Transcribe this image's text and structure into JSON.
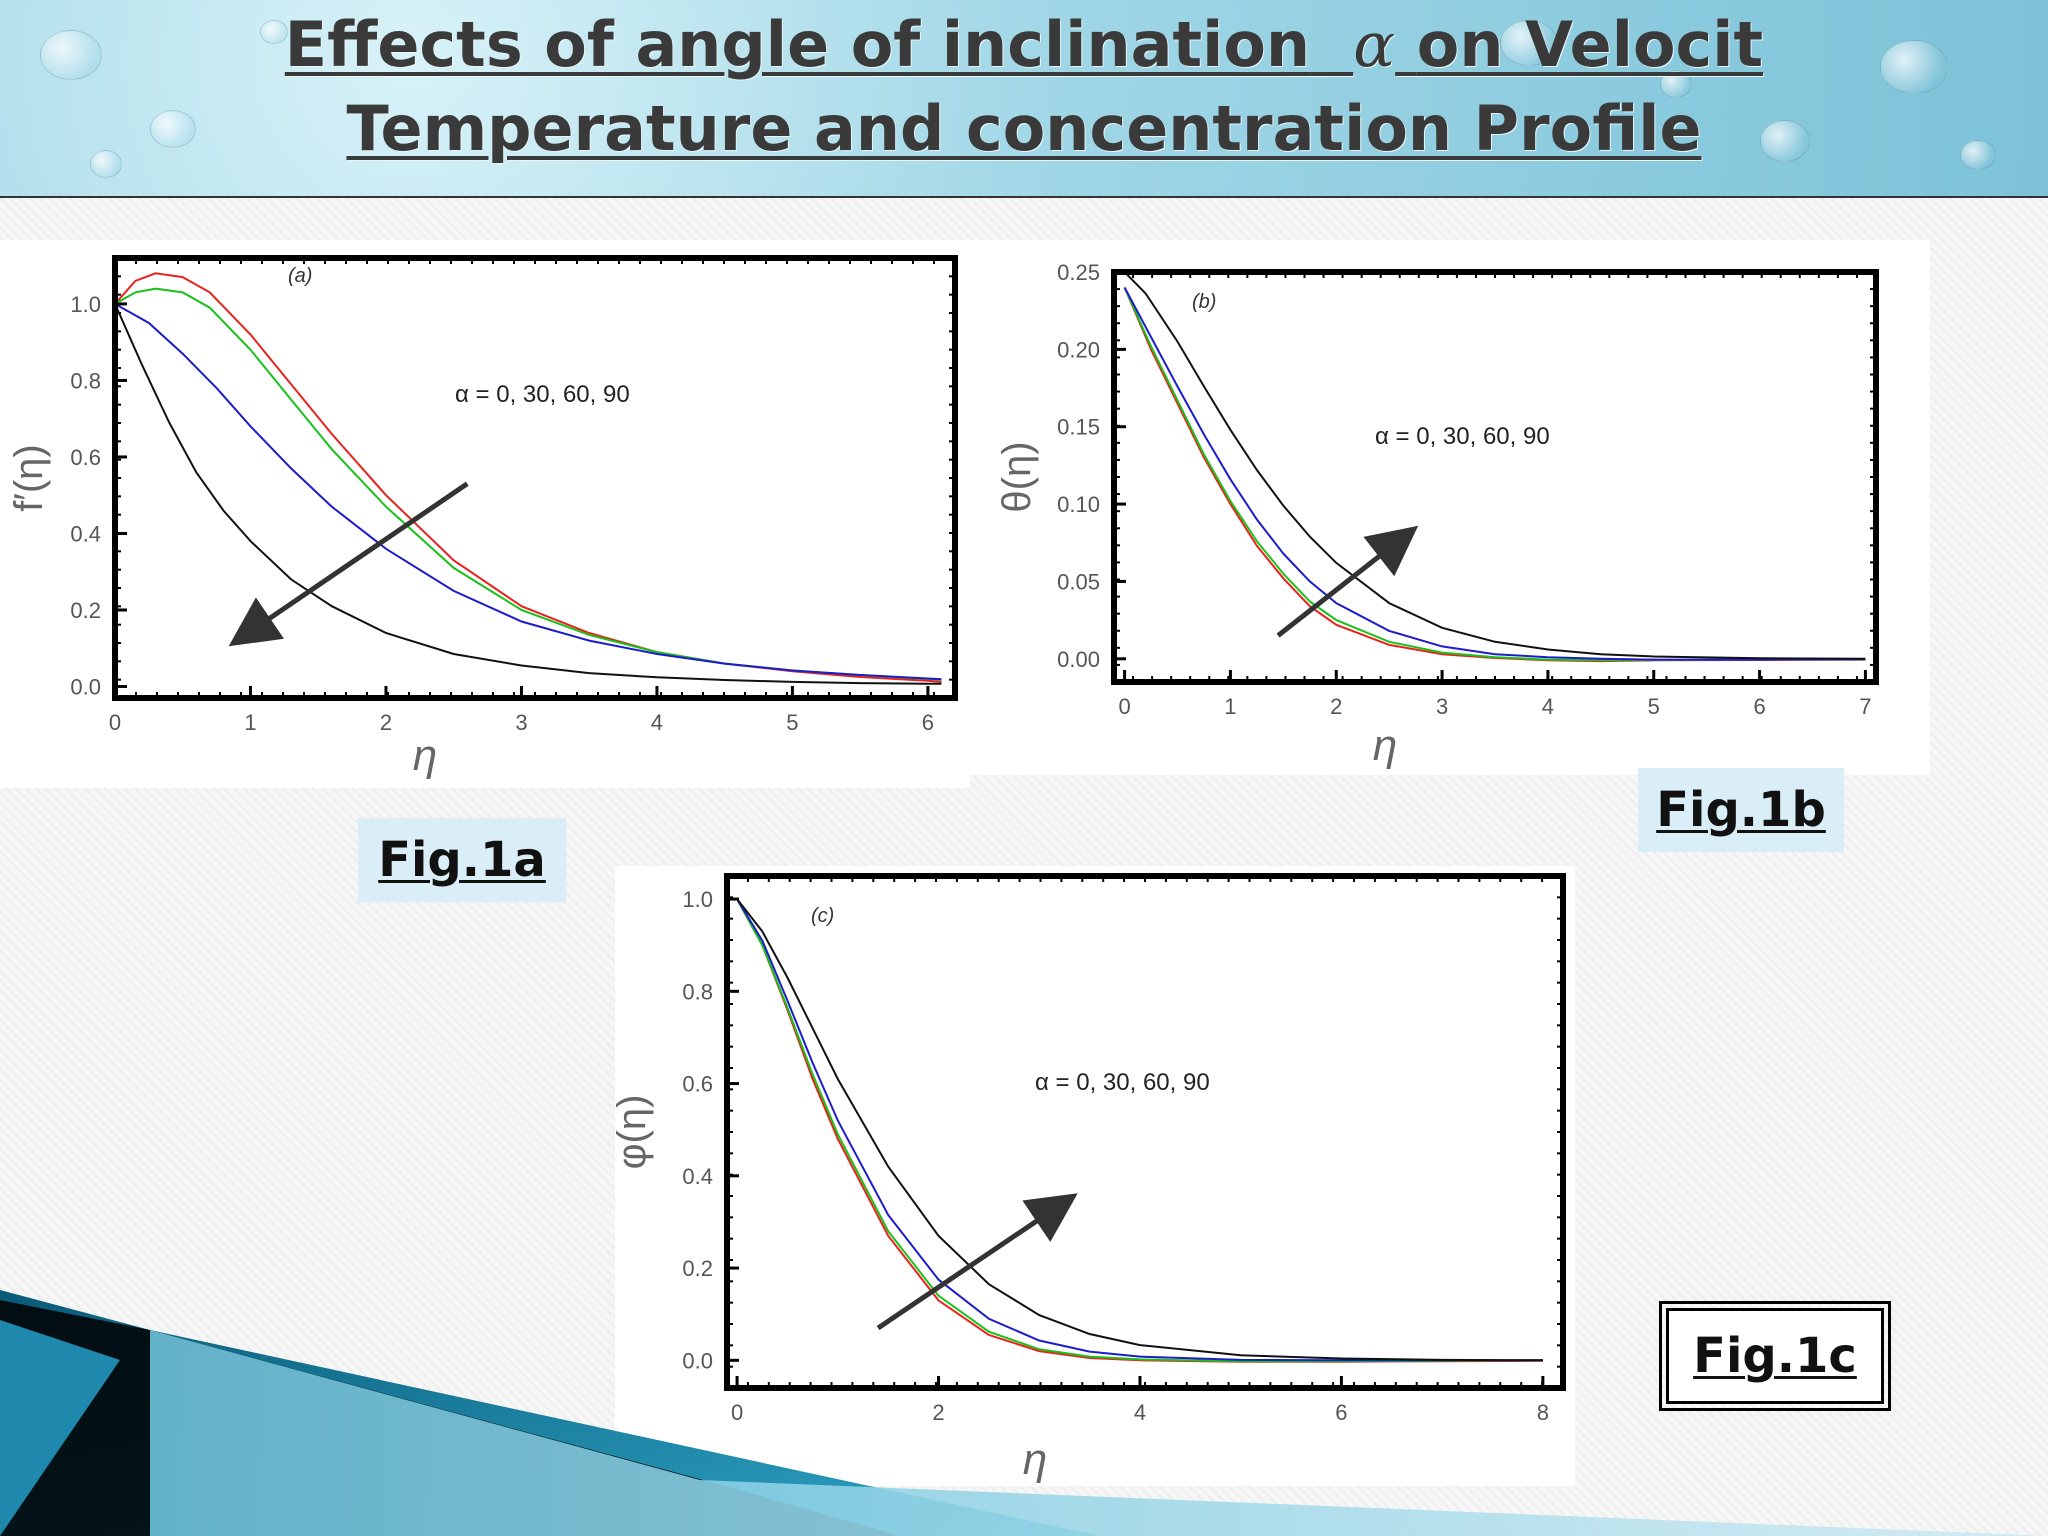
{
  "title": {
    "line1_pre": "Effects of angle of inclination",
    "line1_symbol": "α",
    "line1_post": "on Velocit",
    "line2": "Temperature  and concentration Profile"
  },
  "figure_labels": {
    "a": "Fig.1a",
    "b": "Fig.1b",
    "c": "Fig.1c"
  },
  "colors": {
    "red": "#e8221c",
    "green": "#19c21a",
    "blue": "#1c1ccc",
    "black": "#111111",
    "banner": "#8fd0e2",
    "swoosh_dark": "#0a5a78",
    "swoosh_light": "#2fa6c8"
  },
  "chart_data": [
    {
      "type": "line",
      "id": "a",
      "panel_label": "(a)",
      "xlabel": "η",
      "ylabel": "f′(η)",
      "annotation": "α = 0, 30, 60, 90",
      "xlim": [
        0,
        6.2
      ],
      "ylim": [
        -0.03,
        1.12
      ],
      "xticks": [
        0,
        1,
        2,
        3,
        4,
        5,
        6
      ],
      "yticks": [
        0.0,
        0.2,
        0.4,
        0.6,
        0.8,
        1.0
      ],
      "ytick_labels": [
        "0.0",
        "0.2",
        "0.4",
        "0.6",
        "0.8",
        "1.0"
      ],
      "arrow": {
        "from": [
          2.6,
          0.53
        ],
        "to": [
          0.9,
          0.12
        ]
      },
      "series": [
        {
          "color": "#e8221c",
          "x": [
            0,
            0.15,
            0.3,
            0.5,
            0.7,
            1.0,
            1.3,
            1.6,
            2.0,
            2.5,
            3.0,
            3.5,
            4.0,
            4.5,
            5.0,
            5.5,
            6.0,
            6.1
          ],
          "y": [
            1.0,
            1.06,
            1.08,
            1.07,
            1.03,
            0.92,
            0.79,
            0.66,
            0.5,
            0.33,
            0.21,
            0.14,
            0.09,
            0.06,
            0.04,
            0.025,
            0.015,
            0.012
          ]
        },
        {
          "color": "#19c21a",
          "x": [
            0,
            0.15,
            0.3,
            0.5,
            0.7,
            1.0,
            1.3,
            1.6,
            2.0,
            2.5,
            3.0,
            3.5,
            4.0,
            4.5,
            5.0,
            5.5,
            6.0,
            6.1
          ],
          "y": [
            1.0,
            1.03,
            1.04,
            1.03,
            0.99,
            0.88,
            0.75,
            0.62,
            0.47,
            0.31,
            0.2,
            0.135,
            0.09,
            0.06,
            0.042,
            0.03,
            0.02,
            0.018
          ]
        },
        {
          "color": "#1c1ccc",
          "x": [
            0,
            0.25,
            0.5,
            0.75,
            1.0,
            1.3,
            1.6,
            2.0,
            2.5,
            3.0,
            3.5,
            4.0,
            4.5,
            5.0,
            5.5,
            6.0,
            6.1
          ],
          "y": [
            1.0,
            0.95,
            0.87,
            0.78,
            0.68,
            0.57,
            0.47,
            0.36,
            0.25,
            0.17,
            0.12,
            0.085,
            0.06,
            0.042,
            0.03,
            0.021,
            0.019
          ]
        },
        {
          "color": "#111111",
          "x": [
            0,
            0.2,
            0.4,
            0.6,
            0.8,
            1.0,
            1.3,
            1.6,
            2.0,
            2.5,
            3.0,
            3.5,
            4.0,
            4.5,
            5.0,
            5.5,
            6.0,
            6.1
          ],
          "y": [
            1.0,
            0.84,
            0.69,
            0.56,
            0.46,
            0.38,
            0.28,
            0.21,
            0.14,
            0.085,
            0.055,
            0.035,
            0.024,
            0.017,
            0.012,
            0.009,
            0.007,
            0.007
          ]
        }
      ]
    },
    {
      "type": "line",
      "id": "b",
      "panel_label": "(b)",
      "xlabel": "η",
      "ylabel": "θ(η)",
      "annotation": "α = 0, 30, 60, 90",
      "xlim": [
        -0.1,
        7.1
      ],
      "ylim": [
        -0.015,
        0.25
      ],
      "xticks": [
        0,
        1,
        2,
        3,
        4,
        5,
        6,
        7
      ],
      "yticks": [
        0.0,
        0.05,
        0.1,
        0.15,
        0.2,
        0.25
      ],
      "ytick_labels": [
        "0.00",
        "0.05",
        "0.10",
        "0.15",
        "0.20",
        "0.25"
      ],
      "arrow": {
        "from": [
          1.45,
          0.015
        ],
        "to": [
          2.7,
          0.082
        ]
      },
      "series": [
        {
          "color": "#e8221c",
          "x": [
            0,
            0.25,
            0.5,
            0.75,
            1.0,
            1.25,
            1.5,
            1.75,
            2.0,
            2.5,
            3.0,
            3.5,
            4.0,
            4.5,
            5.0,
            6.0,
            7.0
          ],
          "y": [
            0.24,
            0.2,
            0.165,
            0.13,
            0.1,
            0.073,
            0.052,
            0.034,
            0.022,
            0.009,
            0.003,
            0.0005,
            -0.001,
            -0.0015,
            -0.001,
            -0.0008,
            -0.0005
          ]
        },
        {
          "color": "#19c21a",
          "x": [
            0,
            0.25,
            0.5,
            0.75,
            1.0,
            1.25,
            1.5,
            1.75,
            2.0,
            2.5,
            3.0,
            3.5,
            4.0,
            4.5,
            5.0,
            6.0,
            7.0
          ],
          "y": [
            0.24,
            0.202,
            0.167,
            0.132,
            0.102,
            0.076,
            0.055,
            0.037,
            0.025,
            0.011,
            0.004,
            0.001,
            -0.0005,
            -0.001,
            -0.0008,
            -0.0005,
            -0.0003
          ]
        },
        {
          "color": "#1c1ccc",
          "x": [
            0,
            0.25,
            0.5,
            0.75,
            1.0,
            1.25,
            1.5,
            1.75,
            2.0,
            2.5,
            3.0,
            3.5,
            4.0,
            4.5,
            5.0,
            6.0,
            7.0
          ],
          "y": [
            0.24,
            0.208,
            0.176,
            0.145,
            0.116,
            0.09,
            0.068,
            0.05,
            0.036,
            0.018,
            0.008,
            0.003,
            0.001,
            0.0,
            -0.0005,
            -0.0005,
            -0.0003
          ]
        },
        {
          "color": "#111111",
          "x": [
            0,
            0.2,
            0.5,
            0.75,
            1.0,
            1.25,
            1.5,
            1.75,
            2.0,
            2.5,
            3.0,
            3.5,
            4.0,
            4.5,
            5.0,
            6.0,
            7.0
          ],
          "y": [
            0.25,
            0.236,
            0.205,
            0.176,
            0.148,
            0.122,
            0.099,
            0.079,
            0.062,
            0.036,
            0.02,
            0.011,
            0.006,
            0.003,
            0.0015,
            0.0003,
            0.0
          ]
        }
      ]
    },
    {
      "type": "line",
      "id": "c",
      "panel_label": "(c)",
      "xlabel": "η",
      "ylabel": "φ(η)",
      "annotation": "α = 0, 30, 60, 90",
      "xlim": [
        -0.1,
        8.2
      ],
      "ylim": [
        -0.06,
        1.05
      ],
      "xticks": [
        0,
        2,
        4,
        6,
        8
      ],
      "yticks": [
        0.0,
        0.2,
        0.4,
        0.6,
        0.8,
        1.0
      ],
      "ytick_labels": [
        "0.0",
        "0.2",
        "0.4",
        "0.6",
        "0.8",
        "1.0"
      ],
      "arrow": {
        "from": [
          1.4,
          0.07
        ],
        "to": [
          3.3,
          0.35
        ]
      },
      "series": [
        {
          "color": "#e8221c",
          "x": [
            0,
            0.25,
            0.5,
            0.75,
            1.0,
            1.5,
            2.0,
            2.5,
            3.0,
            3.5,
            4.0,
            5.0,
            6.0,
            7.0,
            8.0
          ],
          "y": [
            1.0,
            0.9,
            0.76,
            0.61,
            0.48,
            0.27,
            0.13,
            0.055,
            0.02,
            0.005,
            0.0,
            -0.003,
            -0.003,
            -0.002,
            -0.001
          ]
        },
        {
          "color": "#19c21a",
          "x": [
            0,
            0.25,
            0.5,
            0.75,
            1.0,
            1.5,
            2.0,
            2.5,
            3.0,
            3.5,
            4.0,
            5.0,
            6.0,
            7.0,
            8.0
          ],
          "y": [
            1.0,
            0.9,
            0.765,
            0.62,
            0.49,
            0.28,
            0.14,
            0.062,
            0.024,
            0.008,
            0.002,
            -0.002,
            -0.002,
            -0.001,
            0.0
          ]
        },
        {
          "color": "#1c1ccc",
          "x": [
            0,
            0.25,
            0.5,
            0.75,
            1.0,
            1.5,
            2.0,
            2.5,
            3.0,
            3.5,
            4.0,
            5.0,
            6.0,
            7.0,
            8.0
          ],
          "y": [
            1.0,
            0.91,
            0.78,
            0.645,
            0.52,
            0.315,
            0.175,
            0.09,
            0.043,
            0.019,
            0.008,
            0.001,
            0.0,
            0.0,
            0.0
          ]
        },
        {
          "color": "#111111",
          "x": [
            0,
            0.25,
            0.5,
            0.75,
            1.0,
            1.5,
            2.0,
            2.5,
            3.0,
            3.5,
            4.0,
            5.0,
            6.0,
            7.0,
            8.0
          ],
          "y": [
            1.0,
            0.93,
            0.83,
            0.72,
            0.61,
            0.42,
            0.27,
            0.165,
            0.098,
            0.057,
            0.033,
            0.011,
            0.004,
            0.001,
            0.0
          ]
        }
      ]
    }
  ]
}
